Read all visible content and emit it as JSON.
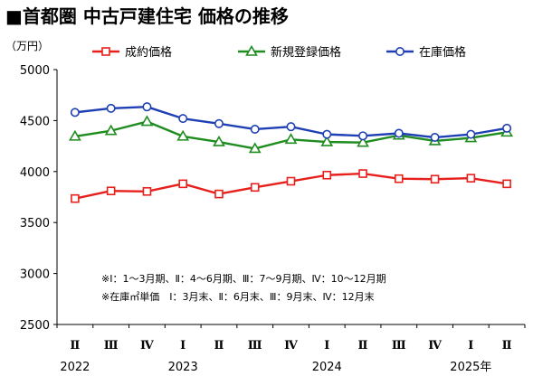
{
  "chart_data": {
    "type": "line",
    "title": "■首都圏 中古戸建住宅 価格の推移",
    "unit": "（万円）",
    "categories": [
      "Ⅱ",
      "Ⅲ",
      "Ⅳ",
      "Ⅰ",
      "Ⅱ",
      "Ⅲ",
      "Ⅳ",
      "Ⅰ",
      "Ⅱ",
      "Ⅲ",
      "Ⅳ",
      "Ⅰ",
      "Ⅱ"
    ],
    "year_labels": [
      {
        "text": "2022",
        "index": 0
      },
      {
        "text": "2023",
        "index": 3
      },
      {
        "text": "2024",
        "index": 7
      },
      {
        "text": "2025年",
        "index": 11
      }
    ],
    "ylim": [
      2500,
      5000
    ],
    "yticks": [
      2500,
      3000,
      3500,
      4000,
      4500,
      5000
    ],
    "grid": false,
    "legend_position": "top",
    "series": [
      {
        "name": "成約価格",
        "color": "#e8201c",
        "marker": "square",
        "values": [
          3735,
          3810,
          3805,
          3880,
          3780,
          3845,
          3905,
          3965,
          3980,
          3930,
          3925,
          3935,
          3880
        ]
      },
      {
        "name": "新規登録価格",
        "color": "#1e8c1e",
        "marker": "triangle",
        "values": [
          4345,
          4400,
          4490,
          4345,
          4290,
          4225,
          4315,
          4290,
          4285,
          4355,
          4300,
          4330,
          4385
        ]
      },
      {
        "name": "在庫価格",
        "color": "#1f3fb4",
        "marker": "circle",
        "values": [
          4580,
          4620,
          4635,
          4520,
          4470,
          4415,
          4440,
          4365,
          4350,
          4375,
          4335,
          4365,
          4425
        ]
      }
    ],
    "annotations": [
      "※Ⅰ：1～3月期、Ⅱ：4～6月期、Ⅲ：7～9月期、Ⅳ：10～12月期",
      "※在庫㎡単価　Ⅰ：3月末、Ⅱ：6月末、Ⅲ：9月末、Ⅳ：12月末"
    ]
  }
}
